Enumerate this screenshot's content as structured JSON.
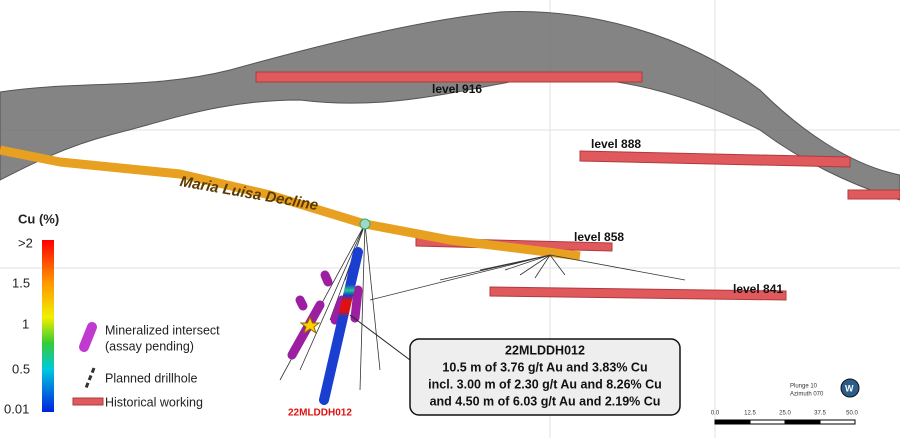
{
  "levels": [
    "level 916",
    "level 888",
    "level 858",
    "level 841"
  ],
  "decline_label": "Maria Luisa Decline",
  "color_scale": {
    "title": "Cu (%)",
    "labels": [
      ">2",
      "1.5",
      "1",
      "0.5",
      "0.01"
    ]
  },
  "legend": [
    {
      "lines": [
        "Mineralized intersect",
        "(assay pending)"
      ]
    },
    {
      "lines": [
        "Planned drillhole"
      ]
    },
    {
      "lines": [
        "Historical working"
      ]
    }
  ],
  "drillhole_label": "22MLDDH012",
  "callout": {
    "title": "22MLDDH012",
    "lines": [
      "10.5 m of 3.76 g/t Au and 3.83% Cu",
      "incl. 3.00 m of 2.30 g/t Au and 8.26% Cu",
      "and 4.50 m of 6.03 g/t Au and 2.19% Cu"
    ]
  },
  "orientation": [
    "Plunge  10",
    "Azimuth 070"
  ],
  "scale_bar": [
    "0.0",
    "12.5",
    "25.0",
    "37.5",
    "50.0"
  ]
}
